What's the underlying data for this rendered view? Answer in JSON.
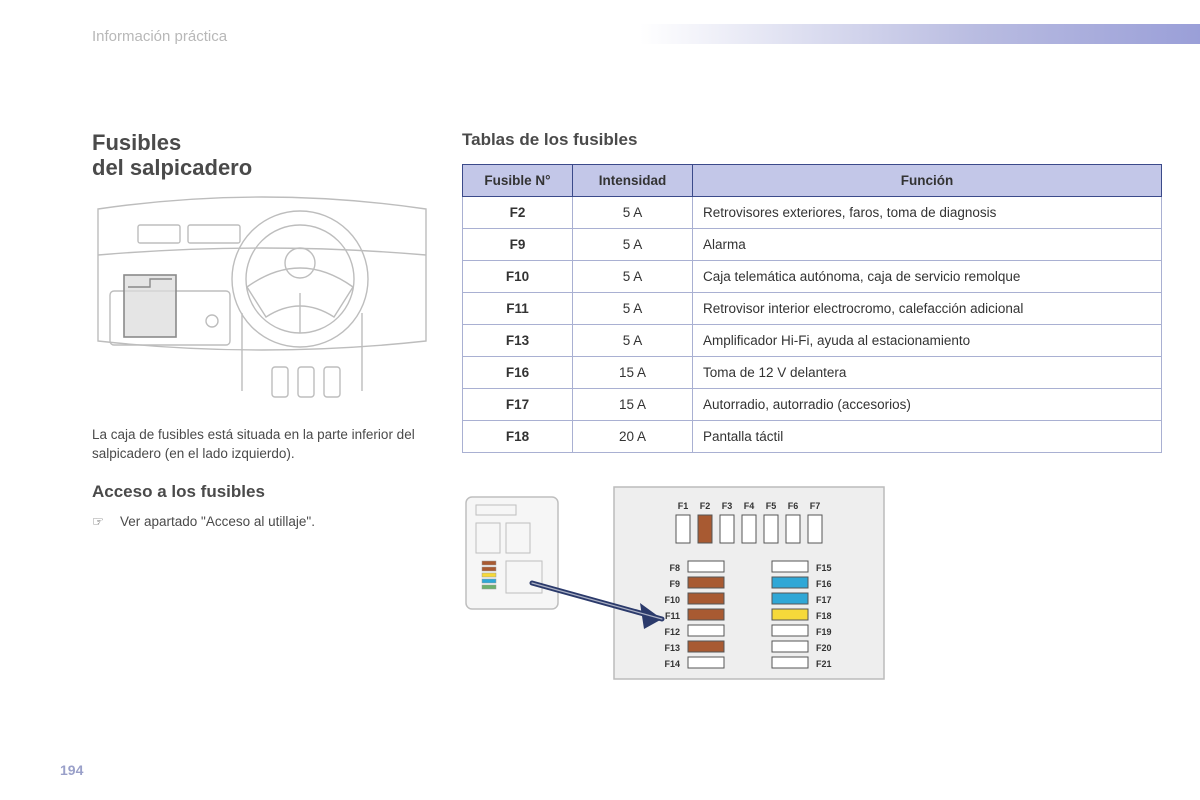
{
  "section_label": "Información práctica",
  "page_number": "194",
  "colors": {
    "band_gradient_start": "#ffffff",
    "band_gradient_end": "#9a9fd8",
    "table_header_bg": "#c3c7e8",
    "table_border": "#3b4a8a",
    "fuse_brown": "#a85a32",
    "fuse_blue": "#2fa7d6",
    "fuse_yellow": "#f6d93a",
    "fuse_empty": "#ffffff",
    "arrow_fill": "#2b3a6b",
    "panel_bg": "#eeeeee"
  },
  "left": {
    "title_line1": "Fusibles",
    "title_line2": "del salpicadero",
    "caption": "La caja de fusibles está situada en la parte inferior del salpicadero (en el lado izquierdo).",
    "access_heading": "Acceso a los fusibles",
    "access_bullet_symbol": "☞",
    "access_bullet_text": "Ver apartado \"Acceso al utillaje\"."
  },
  "right": {
    "tables_heading": "Tablas de los fusibles",
    "columns": {
      "num": "Fusible N°",
      "rating": "Intensidad",
      "func": "Función"
    },
    "rows": [
      {
        "num": "F2",
        "rating": "5 A",
        "func": "Retrovisores exteriores, faros, toma de diagnosis"
      },
      {
        "num": "F9",
        "rating": "5 A",
        "func": "Alarma"
      },
      {
        "num": "F10",
        "rating": "5 A",
        "func": "Caja telemática autónoma, caja de servicio remolque"
      },
      {
        "num": "F11",
        "rating": "5 A",
        "func": "Retrovisor interior electrocromo, calefacción adicional"
      },
      {
        "num": "F13",
        "rating": "5 A",
        "func": "Amplificador Hi-Fi, ayuda al estacionamiento"
      },
      {
        "num": "F16",
        "rating": "15 A",
        "func": "Toma de 12 V delantera"
      },
      {
        "num": "F17",
        "rating": "15 A",
        "func": "Autorradio, autorradio (accesorios)"
      },
      {
        "num": "F18",
        "rating": "20 A",
        "func": "Pantalla táctil"
      }
    ]
  },
  "fuse_layout": {
    "top_row": [
      {
        "label": "F1",
        "color": "empty"
      },
      {
        "label": "F2",
        "color": "brown"
      },
      {
        "label": "F3",
        "color": "empty"
      },
      {
        "label": "F4",
        "color": "empty"
      },
      {
        "label": "F5",
        "color": "empty"
      },
      {
        "label": "F6",
        "color": "empty"
      },
      {
        "label": "F7",
        "color": "empty"
      }
    ],
    "left_col": [
      {
        "label": "F8",
        "color": "empty"
      },
      {
        "label": "F9",
        "color": "brown"
      },
      {
        "label": "F10",
        "color": "brown"
      },
      {
        "label": "F11",
        "color": "brown"
      },
      {
        "label": "F12",
        "color": "empty"
      },
      {
        "label": "F13",
        "color": "brown"
      },
      {
        "label": "F14",
        "color": "empty"
      }
    ],
    "right_col": [
      {
        "label": "F15",
        "color": "empty"
      },
      {
        "label": "F16",
        "color": "blue"
      },
      {
        "label": "F17",
        "color": "blue"
      },
      {
        "label": "F18",
        "color": "yellow"
      },
      {
        "label": "F19",
        "color": "empty"
      },
      {
        "label": "F20",
        "color": "empty"
      },
      {
        "label": "F21",
        "color": "empty"
      }
    ]
  }
}
